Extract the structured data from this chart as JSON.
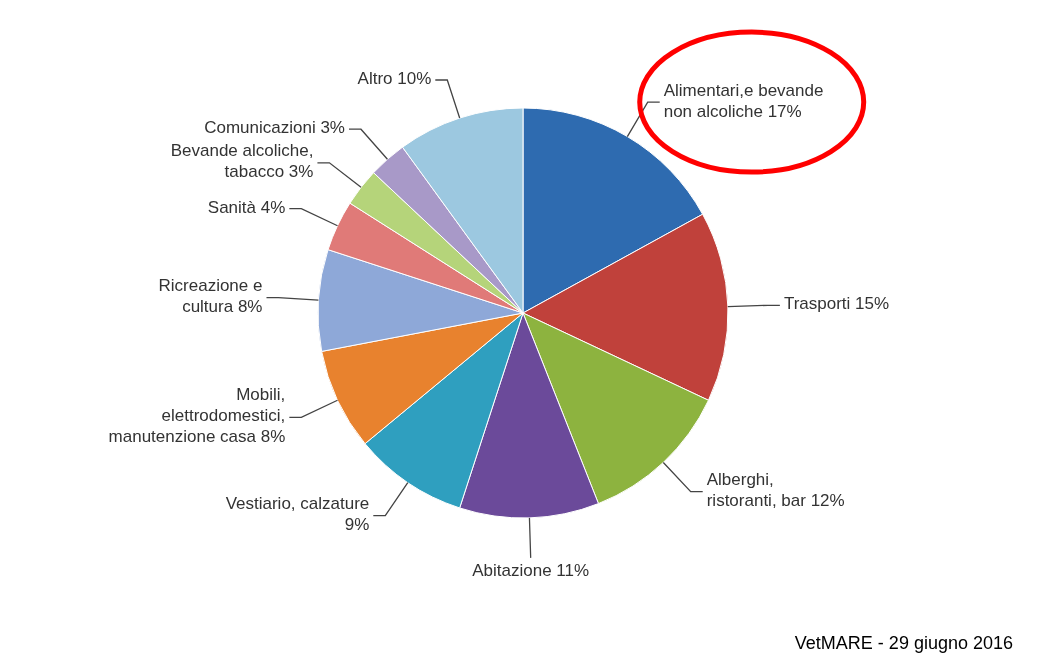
{
  "chart_data": {
    "type": "pie",
    "categories": [
      "Alimentari,e bevande non alcoliche",
      "Trasporti",
      "Alberghi, ristoranti, bar",
      "Abitazione",
      "Vestiario, calzature",
      "Mobili, elettrodomestici, manutenzione casa",
      "Ricreazione e cultura",
      "Sanità",
      "Bevande alcoliche, tabacco",
      "Comunicazioni",
      "Altro"
    ],
    "values": [
      17,
      15,
      12,
      11,
      9,
      8,
      8,
      4,
      3,
      3,
      10
    ],
    "value_labels": [
      "17%",
      "15%",
      "12%",
      "11%",
      "9%",
      "8%",
      "8%",
      "4%",
      "3%",
      "3%",
      "10%"
    ],
    "colors": [
      "#2e6bb0",
      "#c0413b",
      "#8db33f",
      "#6b4a9a",
      "#2f9fbf",
      "#e8822e",
      "#8ea8d8",
      "#e07a78",
      "#b5d47a",
      "#a899c8",
      "#9cc8e0"
    ],
    "legend": false,
    "annotations": [
      "VetMARE - 29 giugno 2016"
    ]
  }
}
